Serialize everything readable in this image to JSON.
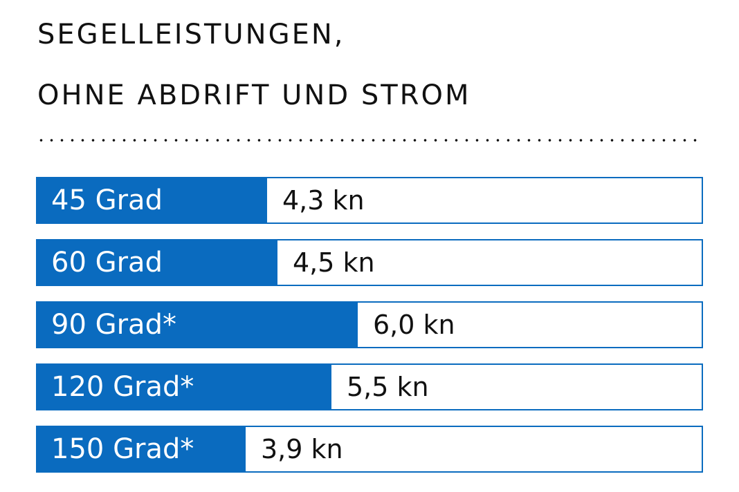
{
  "title_lines": [
    "SEGELLEISTUNGEN,",
    "OHNE ABDRIFT UND STROM"
  ],
  "colors": {
    "accent": "#0a6bbf",
    "text": "#111111",
    "background": "#ffffff"
  },
  "chart_data": {
    "type": "bar",
    "orientation": "horizontal",
    "title": "SEGELLEISTUNGEN, OHNE ABDRIFT UND STROM",
    "categories": [
      "45 Grad",
      "60 Grad",
      "90 Grad*",
      "120 Grad*",
      "150 Grad*"
    ],
    "values": [
      4.3,
      4.5,
      6.0,
      5.5,
      3.9
    ],
    "value_labels": [
      "4,3 kn",
      "4,5 kn",
      "6,0 kn",
      "5,5 kn",
      "3,9 kn"
    ],
    "unit": "kn",
    "xlabel": "",
    "ylabel": "",
    "grid": false,
    "legend": "none"
  }
}
